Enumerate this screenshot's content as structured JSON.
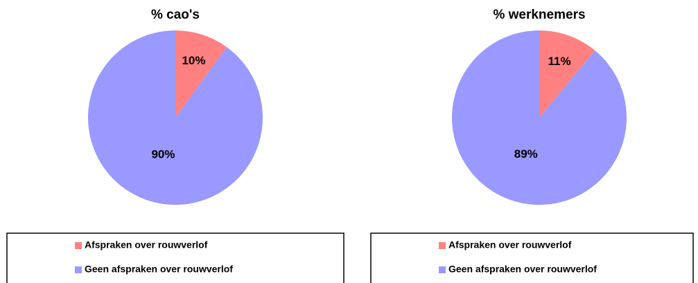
{
  "chart_data": [
    {
      "type": "pie",
      "title": "% cao's",
      "categories": [
        "Afspraken over rouwverlof",
        "Geen afspraken over rouwverlof"
      ],
      "values": [
        10,
        90
      ],
      "value_labels": [
        "10%",
        "90%"
      ],
      "colors": [
        "#ff8080",
        "#9999ff"
      ]
    },
    {
      "type": "pie",
      "title": "% werknemers",
      "categories": [
        "Afspraken over rouwverlof",
        "Geen afspraken over rouwverlof"
      ],
      "values": [
        11,
        89
      ],
      "value_labels": [
        "11%",
        "89%"
      ],
      "colors": [
        "#ff8080",
        "#9999ff"
      ]
    }
  ]
}
